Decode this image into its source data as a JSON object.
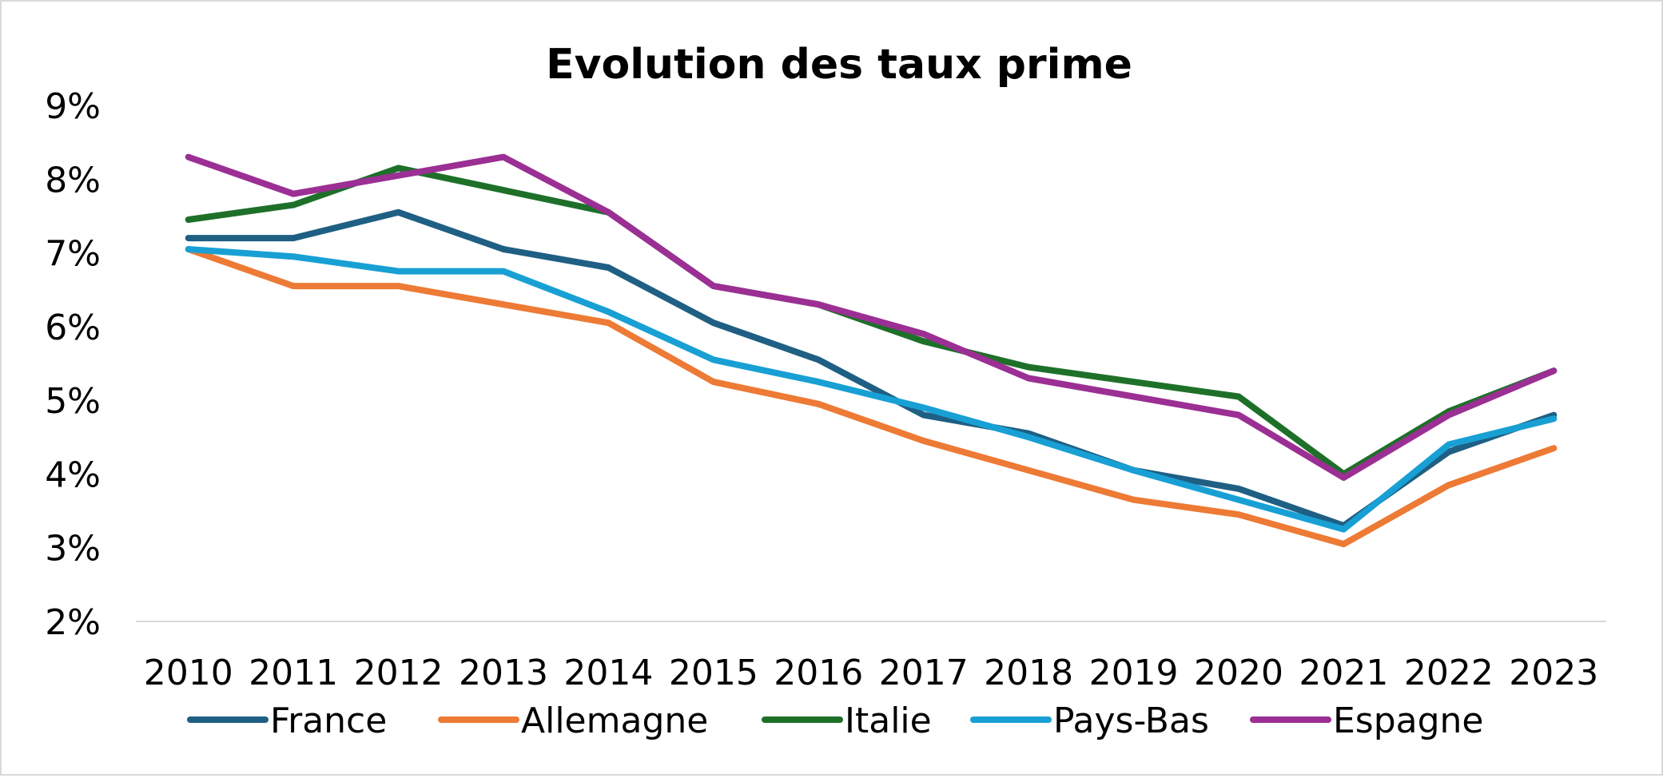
{
  "chart_data": {
    "type": "line",
    "title": "Evolution des taux prime",
    "xlabel": "",
    "ylabel": "",
    "ylim": [
      2,
      9
    ],
    "ytick_values": [
      2,
      3,
      4,
      5,
      6,
      7,
      8,
      9
    ],
    "ytick_labels": [
      "2%",
      "3%",
      "4%",
      "5%",
      "6%",
      "7%",
      "8%",
      "9%"
    ],
    "grid": false,
    "legend_position": "bottom",
    "categories": [
      "2010",
      "2011",
      "2012",
      "2013",
      "2014",
      "2015",
      "2016",
      "2017",
      "2018",
      "2019",
      "2020",
      "2021",
      "2022",
      "2023"
    ],
    "series": [
      {
        "name": "France",
        "color": "#1f5f84",
        "values": [
          7.2,
          7.2,
          7.55,
          7.05,
          6.8,
          6.05,
          5.55,
          4.8,
          4.55,
          4.05,
          3.8,
          3.3,
          4.3,
          4.8
        ]
      },
      {
        "name": "Allemagne",
        "color": "#ed7a35",
        "values": [
          7.05,
          6.55,
          6.55,
          6.3,
          6.05,
          5.25,
          4.95,
          4.45,
          4.05,
          3.65,
          3.45,
          3.05,
          3.85,
          4.35
        ]
      },
      {
        "name": "Italie",
        "color": "#1e7029",
        "values": [
          7.45,
          7.65,
          8.15,
          7.85,
          7.55,
          6.55,
          6.3,
          5.8,
          5.45,
          5.25,
          5.05,
          4.0,
          4.85,
          5.4
        ]
      },
      {
        "name": "Pays-Bas",
        "color": "#18a0d4",
        "values": [
          7.05,
          6.95,
          6.75,
          6.75,
          6.2,
          5.55,
          5.25,
          4.9,
          4.5,
          4.05,
          3.65,
          3.25,
          4.4,
          4.75
        ]
      },
      {
        "name": "Espagne",
        "color": "#9b2f94",
        "values": [
          8.3,
          7.8,
          8.05,
          8.3,
          7.55,
          6.55,
          6.3,
          5.9,
          5.3,
          5.05,
          4.8,
          3.95,
          4.8,
          5.4
        ]
      }
    ]
  }
}
